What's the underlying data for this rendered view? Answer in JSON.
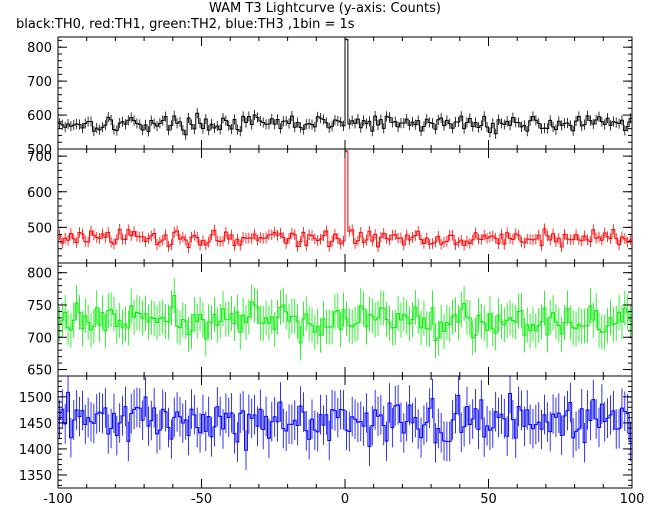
{
  "title": "WAM T3 Lightcurve (y-axis: Counts)",
  "subtitle": "black:TH0, red:TH1, green:TH2, blue:TH3 ,1bin = 1s",
  "chart_data": {
    "type": "line",
    "x_range": [
      -100,
      100
    ],
    "x_ticks": [
      -100,
      -50,
      0,
      50,
      100
    ],
    "panels": [
      {
        "series": "TH0",
        "color": "#000000",
        "ylim": [
          500,
          830
        ],
        "y_ticks": [
          500,
          600,
          700,
          800
        ],
        "baseline": 575,
        "noise": 22,
        "error": 15,
        "spike": [
          823,
          829
        ],
        "spike_width": 1
      },
      {
        "series": "TH1",
        "color": "#ff0000",
        "ylim": [
          400,
          720
        ],
        "y_ticks": [
          500,
          600,
          700
        ],
        "baseline": 470,
        "noise": 22,
        "error": 15,
        "spike": [
          714,
          720
        ],
        "spike_width": 1
      },
      {
        "series": "TH2",
        "color": "#00ee00",
        "ylim": [
          640,
          815
        ],
        "y_ticks": [
          650,
          700,
          750,
          800
        ],
        "baseline": 727,
        "noise": 24,
        "error": 27
      },
      {
        "series": "TH3",
        "color": "#0000ff",
        "ylim": [
          1325,
          1540
        ],
        "y_ticks": [
          1350,
          1400,
          1450,
          1500
        ],
        "baseline": 1453,
        "noise": 38,
        "error": 38
      }
    ]
  }
}
